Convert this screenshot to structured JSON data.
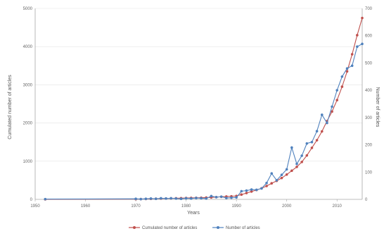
{
  "chart_data": {
    "type": "line",
    "xlabel": "Years",
    "ylabel_left": "Cumulated number of articles",
    "ylabel_right": "Number of articles",
    "x_ticks": [
      1950,
      1960,
      1970,
      1980,
      1990,
      2000,
      2010
    ],
    "x_tick_labels": [
      "1950",
      "1960",
      "1970",
      "1980",
      "1990",
      "2000",
      "2010"
    ],
    "y_left_ticks": [
      0,
      1000,
      2000,
      3000,
      4000,
      5000
    ],
    "y_left_tick_labels": [
      "0",
      "1000",
      "2000",
      "3000",
      "4000",
      "5000"
    ],
    "y_right_ticks": [
      0,
      100,
      200,
      300,
      400,
      500,
      600,
      700
    ],
    "y_right_tick_labels": [
      "0",
      "100",
      "200",
      "300",
      "400",
      "500",
      "600",
      "700"
    ],
    "xlim": [
      1950,
      2015
    ],
    "ylim_left": [
      0,
      5000
    ],
    "ylim_right": [
      0,
      700
    ],
    "legend_position": "bottom",
    "series": [
      {
        "name": "Cumulated number of articles",
        "axis": "left",
        "color": "#c0504d",
        "x": [
          1952,
          1970,
          1971,
          1972,
          1973,
          1974,
          1975,
          1976,
          1977,
          1978,
          1979,
          1980,
          1981,
          1982,
          1983,
          1984,
          1985,
          1986,
          1987,
          1988,
          1989,
          1990,
          1991,
          1992,
          1993,
          1994,
          1995,
          1996,
          1997,
          1998,
          1999,
          2000,
          2001,
          2002,
          2003,
          2004,
          2005,
          2006,
          2007,
          2008,
          2009,
          2010,
          2011,
          2012,
          2013,
          2014,
          2015
        ],
        "y": [
          1,
          5,
          8,
          11,
          14,
          17,
          20,
          23,
          26,
          29,
          32,
          35,
          38,
          41,
          44,
          47,
          50,
          60,
          68,
          75,
          80,
          90,
          125,
          165,
          205,
          245,
          290,
          350,
          420,
          485,
          560,
          650,
          750,
          850,
          980,
          1150,
          1350,
          1550,
          1780,
          2050,
          2300,
          2600,
          2950,
          3350,
          3800,
          4300,
          4750
        ]
      },
      {
        "name": "Number of articles",
        "axis": "right",
        "color": "#4f81bd",
        "x": [
          1952,
          1970,
          1971,
          1972,
          1973,
          1974,
          1975,
          1976,
          1977,
          1978,
          1979,
          1980,
          1981,
          1982,
          1983,
          1984,
          1985,
          1986,
          1987,
          1988,
          1989,
          1990,
          1991,
          1992,
          1993,
          1994,
          1995,
          1996,
          1997,
          1998,
          1999,
          2000,
          2001,
          2002,
          2003,
          2004,
          2005,
          2006,
          2007,
          2008,
          2009,
          2010,
          2011,
          2012,
          2013,
          2014,
          2015
        ],
        "y": [
          1,
          2,
          1,
          2,
          3,
          2,
          4,
          3,
          4,
          3,
          2,
          4,
          3,
          5,
          4,
          3,
          12,
          8,
          10,
          5,
          6,
          7,
          30,
          32,
          36,
          35,
          40,
          60,
          95,
          70,
          90,
          110,
          190,
          130,
          160,
          205,
          210,
          250,
          310,
          280,
          340,
          400,
          450,
          480,
          490,
          560,
          570
        ]
      }
    ]
  }
}
